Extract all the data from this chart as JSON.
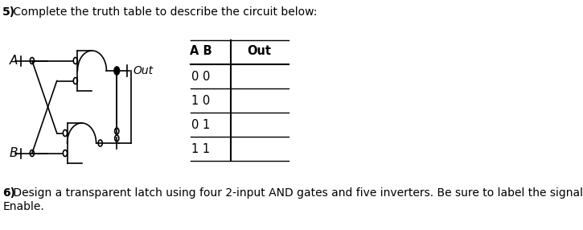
{
  "title_bold": "5)",
  "title_rest": " Complete the truth table to describe the circuit below:",
  "q6_bold": "6)",
  "q6_rest": " Design a transparent latch using four 2-input AND gates and five inverters. Be sure to label the signals In, Out, and",
  "q6_line2": "Enable.",
  "bg_color": "#ffffff",
  "text_color": "#000000",
  "label_A": "A",
  "label_B": "B",
  "label_Out": "Out",
  "table_header_ab": "A B",
  "table_header_out": "Out",
  "table_rows": [
    "0 0",
    "1 0",
    "0 1",
    "1 1"
  ],
  "fontsize_title": 10,
  "fontsize_body": 10,
  "fontsize_labels": 10,
  "lw_circuit": 1.2,
  "lw_table": 1.2
}
